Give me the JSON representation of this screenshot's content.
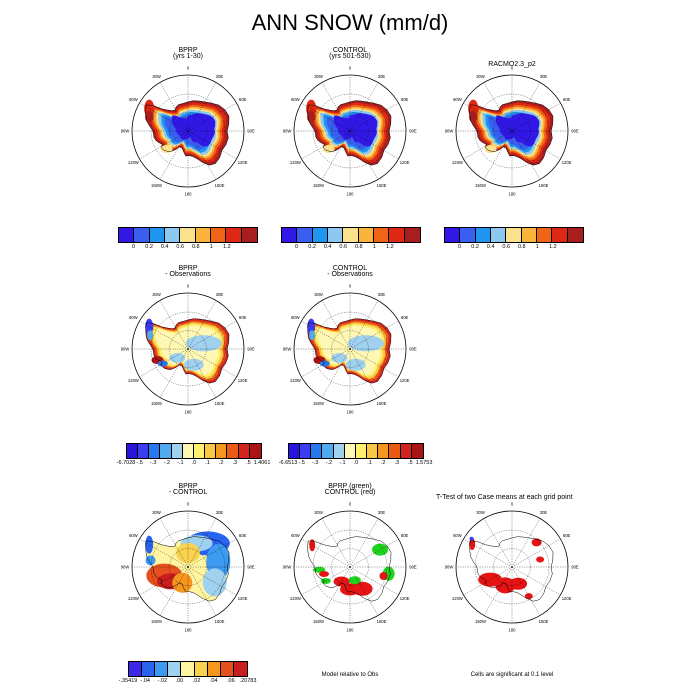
{
  "title": "ANN SNOW (mm/d)",
  "colors": {
    "snow": [
      "#3218e6",
      "#3a5ef0",
      "#1e96f0",
      "#8cc8f0",
      "#fae28c",
      "#fab43c",
      "#f06418",
      "#dc2814",
      "#a81e1e"
    ],
    "diff": [
      "#2814dc",
      "#3c3cf0",
      "#2878f0",
      "#50aaf0",
      "#a0d2f0",
      "#fff8b4",
      "#fff06e",
      "#fac846",
      "#f5961e",
      "#eb5a14",
      "#d2231e",
      "#aa1414"
    ],
    "dd": [
      "#3c28e6",
      "#2864f0",
      "#3c9af0",
      "#a0d2f0",
      "#fff5a0",
      "#fad250",
      "#f5961e",
      "#e6501e",
      "#c81e1e"
    ],
    "green": "#1ed21e",
    "red": "#e61414"
  },
  "meridian_labels": [
    "0",
    "30E",
    "60E",
    "90E",
    "120E",
    "150E",
    "180",
    "150W",
    "120W",
    "90W",
    "60W",
    "30W"
  ],
  "panels": [
    {
      "id": "bprp",
      "title1": "BPRP",
      "title2": "(yrs 1-30)"
    },
    {
      "id": "control",
      "title1": "CONTROL",
      "title2": "(yrs 501-530)"
    },
    {
      "id": "racmo",
      "title1": "RACMO2.3_p2",
      "title2": ""
    },
    {
      "id": "bprp-obs",
      "title1": "BPRP",
      "title2": "- Observations"
    },
    {
      "id": "control-obs",
      "title1": "CONTROL",
      "title2": "- Observations"
    },
    {
      "id": "bprp-control",
      "title1": "BPRP",
      "title2": "- CONTROL"
    },
    {
      "id": "model-rel-obs",
      "title1": "BPRP (green)",
      "title2": "CONTROL (red)"
    },
    {
      "id": "ttest",
      "title1": "T-Test of two Case means at each grid point",
      "title2": ""
    }
  ],
  "colorbars": {
    "snow": {
      "labels": [
        "0",
        "0.2",
        "0.4",
        "0.6",
        "0.8",
        "1",
        "1.2"
      ]
    },
    "bprp_obs": {
      "labels": [
        "-6.7028",
        "-.5",
        "-.3",
        "-.2",
        "-.1",
        ".0",
        ".1",
        ".2",
        ".3",
        ".5",
        "1.4061"
      ]
    },
    "control_obs": {
      "labels": [
        "-6.6513",
        "-.5",
        "-.3",
        "-.2",
        "-.1",
        ".0",
        ".1",
        ".2",
        ".3",
        ".5",
        "1.5753"
      ]
    },
    "bprp_control": {
      "labels": [
        "-.35419",
        "-.04",
        "-.02",
        ".00",
        ".02",
        ".04",
        ".06",
        ".20783"
      ]
    }
  },
  "footers": {
    "model_rel": "Model relative to Obs",
    "ttest": "Cells are significant at 0.1 level"
  },
  "chart_data": [
    {
      "type": "heatmap",
      "title": "BPRP (yrs 1-30)",
      "projection": "south polar stereographic",
      "units": "mm/d",
      "levels": [
        0,
        0.2,
        0.4,
        0.6,
        0.8,
        1,
        1.2
      ],
      "pattern": {
        "interior": 0.1,
        "plateau": 0.3,
        "mid": 0.5,
        "coast": 1.0,
        "peninsula": 1.3
      }
    },
    {
      "type": "heatmap",
      "title": "CONTROL (yrs 501-530)",
      "projection": "south polar stereographic",
      "units": "mm/d",
      "levels": [
        0,
        0.2,
        0.4,
        0.6,
        0.8,
        1,
        1.2
      ],
      "pattern": {
        "interior": 0.1,
        "plateau": 0.3,
        "mid": 0.5,
        "coast": 1.0,
        "peninsula": 1.3
      }
    },
    {
      "type": "heatmap",
      "title": "RACMO2.3_p2",
      "projection": "south polar stereographic",
      "units": "mm/d",
      "levels": [
        0,
        0.2,
        0.4,
        0.6,
        0.8,
        1,
        1.2
      ],
      "pattern": {
        "interior": 0.1,
        "plateau": 0.3,
        "mid": 0.5,
        "coast": 1.0,
        "peninsula": 1.3
      }
    },
    {
      "type": "heatmap",
      "title": "BPRP - Observations",
      "projection": "south polar stereographic",
      "units": "mm/d",
      "levels": [
        -0.5,
        -0.3,
        -0.2,
        -0.1,
        0.0,
        0.1,
        0.2,
        0.3,
        0.5
      ],
      "min": -6.7028,
      "max": 1.4061,
      "pattern": {
        "interior": 0.02,
        "plateau": -0.05,
        "coast": 0.3,
        "peninsula": 0.5,
        "west_coast": -0.4
      }
    },
    {
      "type": "heatmap",
      "title": "CONTROL - Observations",
      "projection": "south polar stereographic",
      "units": "mm/d",
      "levels": [
        -0.5,
        -0.3,
        -0.2,
        -0.1,
        0.0,
        0.1,
        0.2,
        0.3,
        0.5
      ],
      "min": -6.6513,
      "max": 1.5753,
      "pattern": {
        "interior": 0.02,
        "plateau": -0.05,
        "coast": 0.3,
        "peninsula": 0.5,
        "west_coast": -0.4
      }
    },
    {
      "type": "heatmap",
      "title": "BPRP - CONTROL",
      "projection": "south polar stereographic",
      "units": "mm/d",
      "levels": [
        -0.04,
        -0.02,
        0.0,
        0.02,
        0.04,
        0.06
      ],
      "min": -0.35419,
      "max": 0.20783,
      "pattern": {
        "east": -0.03,
        "center": 0.01,
        "west": 0.06,
        "peninsula": -0.04
      }
    },
    {
      "type": "heatmap",
      "title": "BPRP (green) CONTROL (red)",
      "subtitle": "Model relative to Obs",
      "categories": [
        "BPRP closer (green)",
        "CONTROL closer (red)"
      ]
    },
    {
      "type": "heatmap",
      "title": "T-Test of two Case means at each grid point",
      "subtitle": "Cells are significant at 0.1 level",
      "significance_level": 0.1
    }
  ]
}
